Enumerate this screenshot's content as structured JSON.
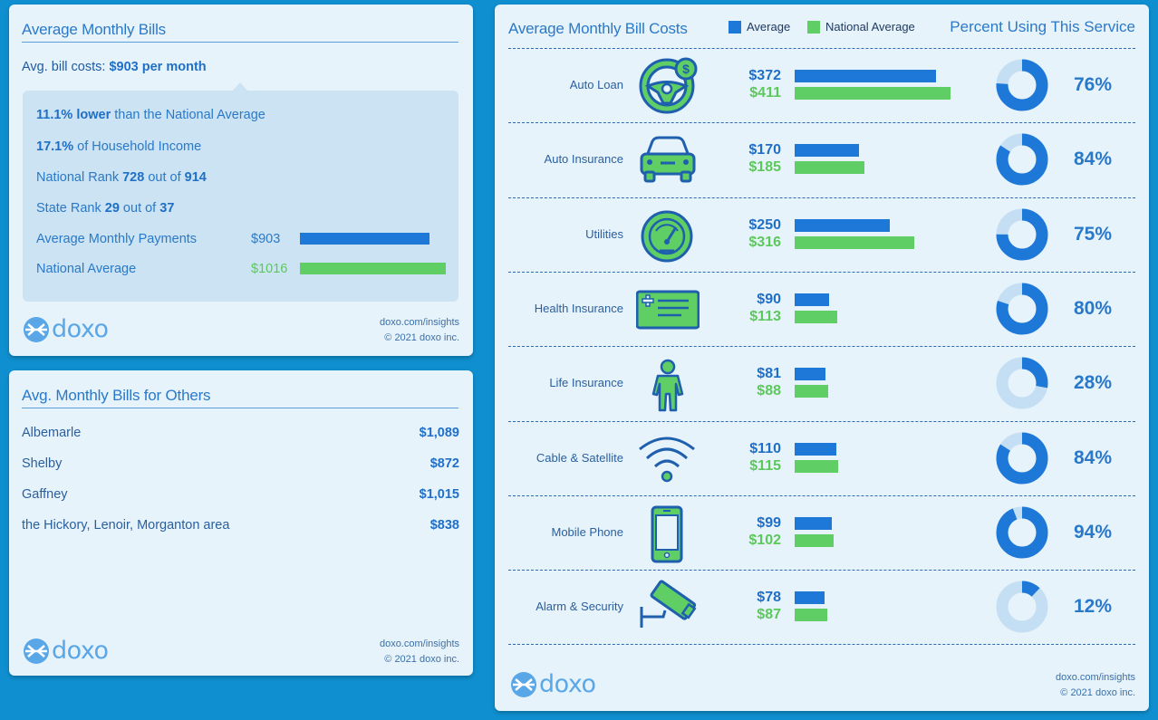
{
  "summary": {
    "title": "Average Monthly Bills",
    "avg_prefix": "Avg. bill costs: ",
    "avg_value": "$903 per month",
    "lower_pct": "11.1%",
    "lower_word": "lower",
    "lower_rest": " than the National Average",
    "income_pct": "17.1%",
    "income_rest": " of Household Income",
    "national_rank_prefix": "National Rank ",
    "national_rank": "728",
    "national_rank_mid": " out of ",
    "national_rank_total": "914",
    "state_rank_prefix": "State Rank ",
    "state_rank": "29",
    "state_rank_mid": " out of ",
    "state_rank_total": "37",
    "payments_label": "Average Monthly Payments",
    "payments_value": "$903",
    "payments_amount": 903,
    "national_label": "National Average",
    "national_value": "$1016",
    "national_amount": 1016,
    "colors": {
      "average": "#1e78d8",
      "national": "#5fce65"
    }
  },
  "others": {
    "title": "Avg. Monthly Bills for Others",
    "rows": [
      {
        "name": "Albemarle",
        "amount": "$1,089"
      },
      {
        "name": "Shelby",
        "amount": "$872"
      },
      {
        "name": "Gaffney",
        "amount": "$1,015"
      },
      {
        "name": "the Hickory, Lenoir, Morganton area",
        "amount": "$838"
      }
    ]
  },
  "footer": {
    "brand": "doxo",
    "link": "doxo.com/insights",
    "copyright": "© 2021 doxo inc."
  },
  "chart_data": {
    "type": "bar",
    "title": "Average Monthly Bill Costs",
    "percent_title": "Percent Using This Service",
    "legend": {
      "placement": "top",
      "entries": [
        "Average",
        "National Average"
      ]
    },
    "colors": {
      "average": "#1e78d8",
      "national": "#5fce65",
      "donut_used": "#1e78d8",
      "donut_rest": "#c4def3"
    },
    "categories": [
      "Auto Loan",
      "Auto Insurance",
      "Utilities",
      "Health Insurance",
      "Life Insurance",
      "Cable & Satellite",
      "Mobile Phone",
      "Alarm & Security"
    ],
    "icons": [
      "steering-wheel-dollar-icon",
      "car-icon",
      "gauge-icon",
      "health-card-icon",
      "person-icon",
      "wifi-icon",
      "mobile-phone-icon",
      "security-camera-icon"
    ],
    "series": [
      {
        "name": "Average",
        "values": [
          372,
          170,
          250,
          90,
          81,
          110,
          99,
          78
        ],
        "labels": [
          "$372",
          "$170",
          "$250",
          "$90",
          "$81",
          "$110",
          "$99",
          "$78"
        ]
      },
      {
        "name": "National Average",
        "values": [
          411,
          185,
          316,
          113,
          88,
          115,
          102,
          87
        ],
        "labels": [
          "$411",
          "$185",
          "$316",
          "$113",
          "$88",
          "$115",
          "$102",
          "$87"
        ]
      }
    ],
    "percent_using": [
      76,
      84,
      75,
      80,
      28,
      84,
      94,
      12
    ],
    "percent_labels": [
      "76%",
      "84%",
      "75%",
      "80%",
      "28%",
      "84%",
      "94%",
      "12%"
    ]
  }
}
